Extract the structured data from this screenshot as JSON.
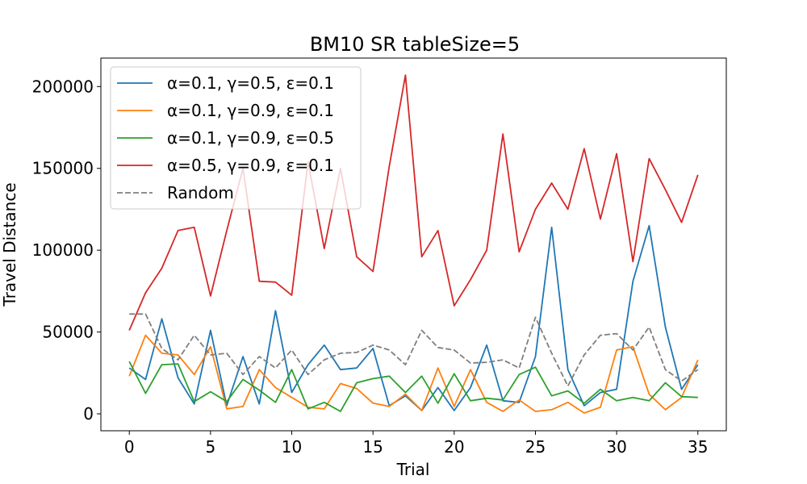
{
  "chart_data": {
    "type": "line",
    "title": "BM10  SR  tableSize=5",
    "xlabel": "Trial",
    "ylabel": "Travel Distance",
    "xlim": [
      -1.75,
      36.75
    ],
    "ylim": [
      -10350,
      217400
    ],
    "xticks": [
      0,
      5,
      10,
      15,
      20,
      25,
      30,
      35
    ],
    "yticks": [
      0,
      50000,
      100000,
      150000,
      200000
    ],
    "legend_position": "upper-left",
    "x": [
      0,
      1,
      2,
      3,
      4,
      5,
      6,
      7,
      8,
      9,
      10,
      11,
      12,
      13,
      14,
      15,
      16,
      17,
      18,
      19,
      20,
      21,
      22,
      23,
      24,
      25,
      26,
      27,
      28,
      29,
      30,
      31,
      32,
      33,
      34,
      35
    ],
    "series": [
      {
        "name": "α=0.1, γ=0.5, ε=0.1",
        "color": "#1f77b4",
        "dash": "solid",
        "values": [
          28000,
          21000,
          58000,
          22000,
          6000,
          51000,
          5000,
          35000,
          6000,
          63000,
          13000,
          30000,
          42000,
          27000,
          28000,
          40000,
          5000,
          11000,
          2000,
          16000,
          2000,
          16000,
          42000,
          8000,
          7000,
          35000,
          114000,
          27000,
          5000,
          13000,
          15000,
          81000,
          115000,
          53000,
          15000,
          30000
        ]
      },
      {
        "name": "α=0.1, γ=0.9, ε=0.1",
        "color": "#ff7f0e",
        "dash": "solid",
        "values": [
          23000,
          48000,
          37000,
          36000,
          24000,
          41000,
          3000,
          4500,
          27000,
          16000,
          10000,
          4000,
          3000,
          18500,
          15500,
          6500,
          4500,
          12000,
          2000,
          28000,
          4500,
          27000,
          7000,
          1500,
          8500,
          1500,
          2500,
          7000,
          500,
          4000,
          39000,
          41000,
          12000,
          2500,
          10000,
          33000
        ]
      },
      {
        "name": "α=0.1, γ=0.9, ε=0.5",
        "color": "#2ca02c",
        "dash": "solid",
        "values": [
          32000,
          12500,
          30000,
          30500,
          7500,
          13500,
          7500,
          21000,
          14500,
          7000,
          27000,
          3000,
          7000,
          1500,
          19000,
          21500,
          23000,
          13000,
          23000,
          6500,
          24500,
          8000,
          9500,
          8500,
          24000,
          28500,
          11000,
          14000,
          6500,
          15000,
          8000,
          10000,
          8000,
          19000,
          10500,
          10000
        ]
      },
      {
        "name": "α=0.5, γ=0.9, ε=0.1",
        "color": "#d62728",
        "dash": "solid",
        "values": [
          51000,
          74000,
          89000,
          112000,
          114000,
          72000,
          112000,
          150000,
          81000,
          80500,
          72500,
          154000,
          101000,
          150000,
          96000,
          87000,
          151000,
          207000,
          96000,
          112000,
          66000,
          82000,
          100000,
          171000,
          99000,
          125000,
          141000,
          125000,
          162000,
          119000,
          159000,
          93000,
          156000,
          137000,
          117000,
          146000
        ]
      },
      {
        "name": "Random",
        "color": "#7f7f7f",
        "dash": "dashed",
        "values": [
          61000,
          61000,
          40000,
          33000,
          48000,
          36000,
          37000,
          24000,
          35000,
          28000,
          39000,
          24000,
          33000,
          37000,
          37500,
          42000,
          39000,
          30000,
          51000,
          40500,
          39000,
          31000,
          31500,
          33000,
          28000,
          59000,
          37000,
          17000,
          36000,
          48000,
          49000,
          39000,
          53000,
          27000,
          20000,
          27000
        ]
      }
    ]
  }
}
